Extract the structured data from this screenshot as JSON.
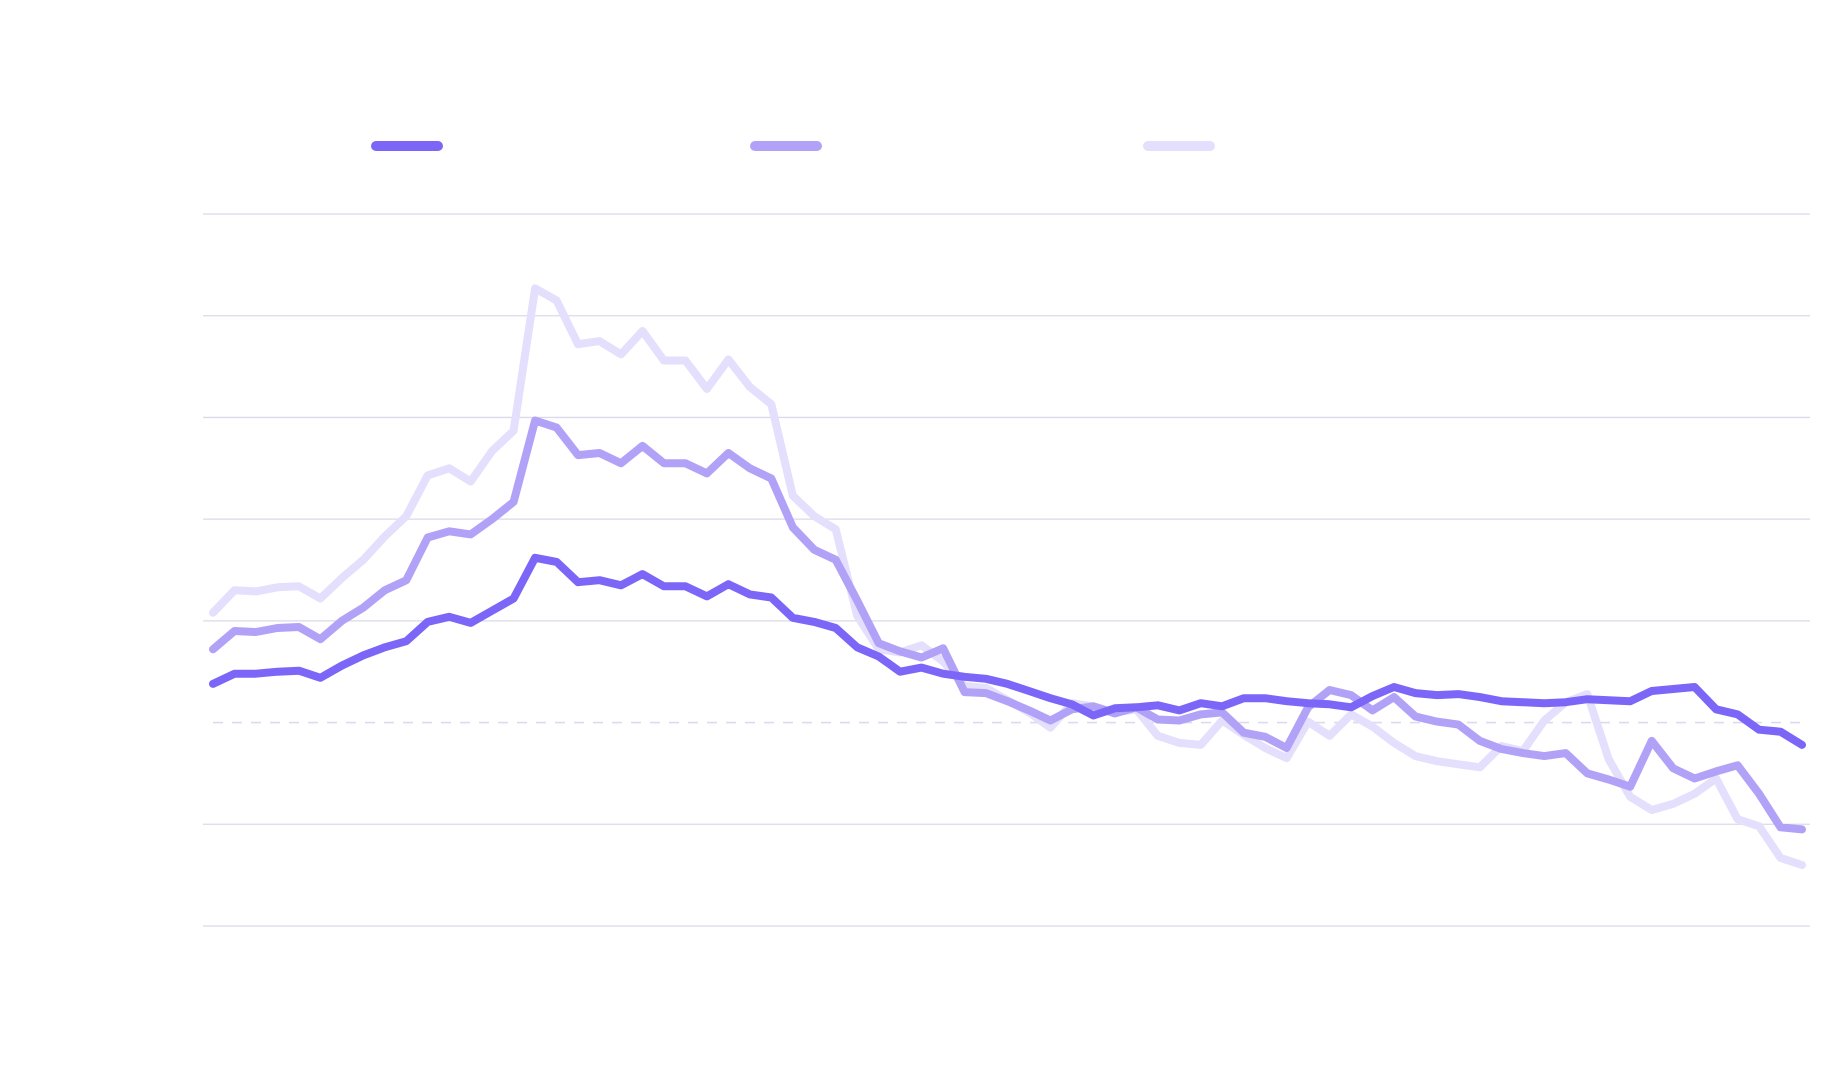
{
  "chart_data": {
    "type": "line",
    "title": "",
    "xlabel": "",
    "ylabel": "",
    "x": [
      0,
      1,
      2,
      3,
      4,
      5,
      6,
      7,
      8,
      9,
      10,
      11,
      12,
      13,
      14,
      15,
      16,
      17,
      18,
      19,
      20,
      21,
      22,
      23,
      24,
      25,
      26,
      27,
      28,
      29,
      30,
      31,
      32,
      33,
      34,
      35,
      36,
      37,
      38,
      39,
      40,
      41,
      42,
      43,
      44,
      45,
      46,
      47,
      48,
      49,
      50,
      51,
      52,
      53,
      54,
      55,
      56,
      57,
      58,
      59,
      60,
      61,
      62,
      63,
      64,
      65,
      66,
      67,
      68,
      69,
      70,
      71,
      72,
      73,
      74
    ],
    "ylim": [
      -2,
      5
    ],
    "gridlines": [
      -2,
      -1,
      0,
      1,
      2,
      3,
      4,
      5
    ],
    "baseline": 0,
    "grid": true,
    "legend": "top-left",
    "series": [
      {
        "color": "#7B66F7",
        "values": [
          0.38,
          0.48,
          0.48,
          0.5,
          0.51,
          0.44,
          0.56,
          0.66,
          0.74,
          0.8,
          0.99,
          1.04,
          0.98,
          1.1,
          1.22,
          1.62,
          1.58,
          1.38,
          1.4,
          1.35,
          1.46,
          1.34,
          1.34,
          1.24,
          1.36,
          1.26,
          1.23,
          1.03,
          0.99,
          0.93,
          0.74,
          0.65,
          0.5,
          0.54,
          0.48,
          0.45,
          0.43,
          0.38,
          0.31,
          0.24,
          0.18,
          0.07,
          0.14,
          0.15,
          0.17,
          0.12,
          0.19,
          0.16,
          0.24,
          0.24,
          0.21,
          0.19,
          0.18,
          0.15,
          0.26,
          0.35,
          0.29,
          0.27,
          0.28,
          0.25,
          0.21,
          0.2,
          0.19,
          0.2,
          0.23,
          0.22,
          0.21,
          0.31,
          0.33,
          0.35,
          0.13,
          0.08,
          -0.07,
          -0.09,
          -0.22
        ]
      },
      {
        "color": "#B1A2F7",
        "values": [
          0.72,
          0.9,
          0.89,
          0.93,
          0.94,
          0.82,
          1.0,
          1.13,
          1.3,
          1.4,
          1.82,
          1.88,
          1.85,
          2.0,
          2.17,
          2.97,
          2.9,
          2.63,
          2.65,
          2.55,
          2.72,
          2.55,
          2.55,
          2.45,
          2.65,
          2.5,
          2.4,
          1.92,
          1.7,
          1.6,
          1.2,
          0.78,
          0.7,
          0.64,
          0.73,
          0.3,
          0.29,
          0.21,
          0.12,
          0.02,
          0.13,
          0.16,
          0.09,
          0.15,
          0.03,
          0.02,
          0.08,
          0.1,
          -0.1,
          -0.14,
          -0.25,
          0.15,
          0.32,
          0.27,
          0.12,
          0.25,
          0.06,
          0.01,
          -0.02,
          -0.18,
          -0.26,
          -0.3,
          -0.33,
          -0.3,
          -0.5,
          -0.56,
          -0.63,
          -0.18,
          -0.45,
          -0.55,
          -0.48,
          -0.42,
          -0.7,
          -1.03,
          -1.05
        ]
      },
      {
        "color": "#E3DFFD",
        "values": [
          1.08,
          1.3,
          1.29,
          1.33,
          1.34,
          1.22,
          1.42,
          1.6,
          1.83,
          2.03,
          2.43,
          2.5,
          2.37,
          2.67,
          2.87,
          4.27,
          4.15,
          3.72,
          3.75,
          3.62,
          3.85,
          3.56,
          3.56,
          3.28,
          3.57,
          3.3,
          3.13,
          2.23,
          2.03,
          1.9,
          1.05,
          0.72,
          0.69,
          0.76,
          0.6,
          0.36,
          0.34,
          0.22,
          0.1,
          -0.05,
          0.19,
          0.16,
          0.1,
          0.13,
          -0.13,
          -0.2,
          -0.22,
          0.02,
          -0.12,
          -0.25,
          -0.35,
          0.01,
          -0.13,
          0.08,
          -0.04,
          -0.2,
          -0.33,
          -0.38,
          -0.41,
          -0.44,
          -0.23,
          -0.28,
          0.02,
          0.2,
          0.28,
          -0.36,
          -0.73,
          -0.86,
          -0.8,
          -0.7,
          -0.55,
          -0.95,
          -1.02,
          -1.33,
          -1.4
        ]
      }
    ]
  }
}
